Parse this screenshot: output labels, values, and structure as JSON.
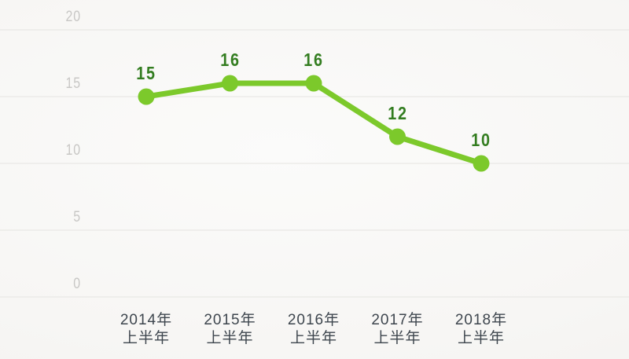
{
  "chart_data": {
    "type": "line",
    "title": "",
    "categories": [
      [
        "2014年",
        "上半年"
      ],
      [
        "2015年",
        "上半年"
      ],
      [
        "2016年",
        "上半年"
      ],
      [
        "2017年",
        "上半年"
      ],
      [
        "2018年",
        "上半年"
      ]
    ],
    "series": [
      {
        "name": "",
        "values": [
          15,
          16,
          16,
          12,
          10
        ]
      }
    ],
    "point_labels": [
      "15",
      "16",
      "16",
      "12",
      "10"
    ],
    "y_ticks": [
      20,
      15,
      10,
      5,
      0
    ],
    "ylim": [
      0,
      20
    ],
    "grid": true,
    "legend_position": "none",
    "xlabel": "",
    "ylabel": "",
    "colors": {
      "line": "#7cc92b",
      "marker": "#7cc92b",
      "point_label": "#337d20",
      "y_tick_label": "#c8c7c5",
      "x_tick_label": "#3e464e",
      "gridline": "#e5e4e1",
      "background_center": "#fbfbfa",
      "background_mid": "#f7f6f4",
      "background_edge": "#f1f0ee"
    }
  }
}
